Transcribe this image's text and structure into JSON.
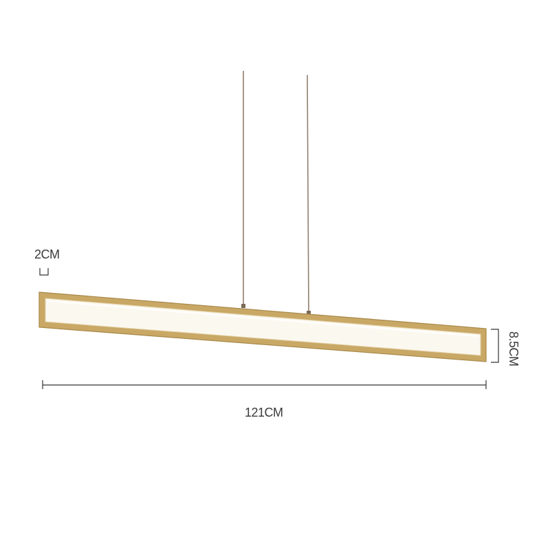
{
  "image": {
    "subject": "pendant-light",
    "dimensions": {
      "thickness": "2CM",
      "length": "121CM",
      "height": "8.5CM"
    },
    "colors": {
      "frame": "#c9a866",
      "frame_shadow": "#a88848",
      "diffuser": "#fbf8ef",
      "wire": "#8f7f6c",
      "dimension_line": "#333333",
      "label": "#3a3a3a",
      "background": "#ffffff"
    }
  }
}
